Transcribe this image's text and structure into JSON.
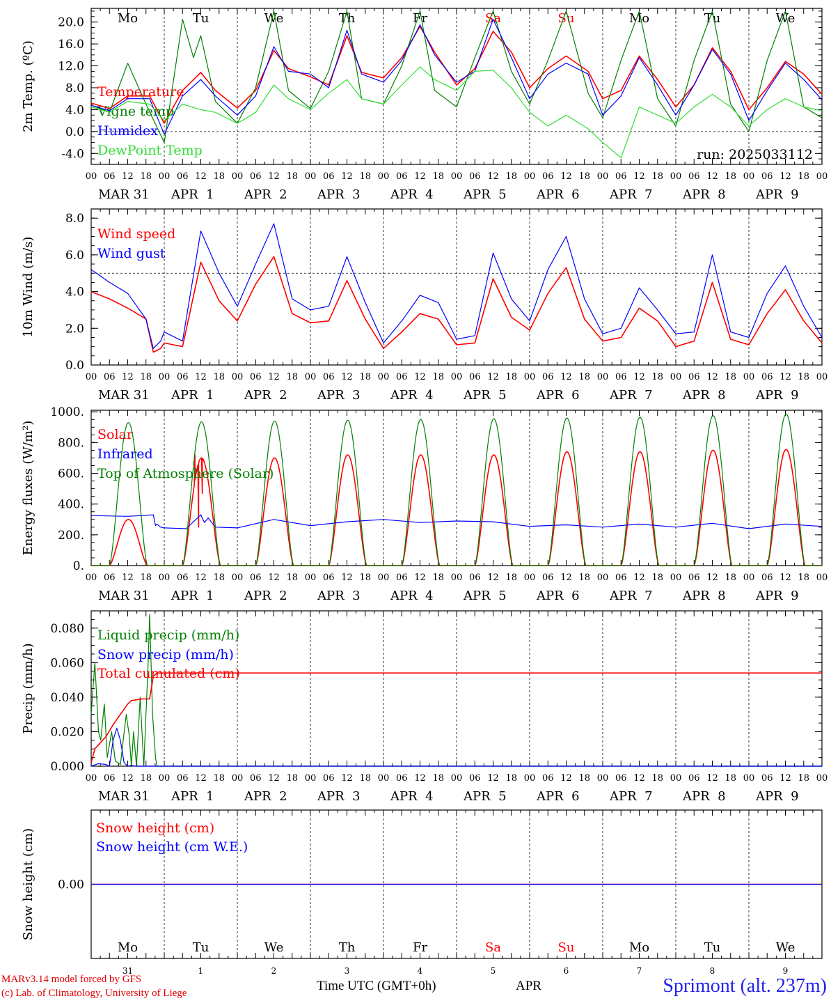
{
  "run_label": "run: 2025033112",
  "day_names": [
    "Mo",
    "Tu",
    "We",
    "Th",
    "Fr",
    "Sa",
    "Su",
    "Mo",
    "Tu",
    "We"
  ],
  "weekend_days": [
    5,
    6
  ],
  "hour_ticks": [
    "00",
    "06",
    "12",
    "18"
  ],
  "date_labels": [
    "MAR 31",
    "APR  1",
    "APR  2",
    "APR  3",
    "APR  4",
    "APR  5",
    "APR  6",
    "APR  7",
    "APR  8",
    "APR  9"
  ],
  "day_numbers": [
    "31",
    "1",
    "2",
    "3",
    "4",
    "5",
    "6",
    "7",
    "8",
    "9"
  ],
  "colors": {
    "red": "#ff0000",
    "blue": "#0000ff",
    "green": "#008000",
    "lime": "#33dd33",
    "grid": "#000000",
    "station": "#2222ee"
  },
  "footer": {
    "credit_line1": "MARv3.14 model forced by GFS",
    "credit_line2": "(c) Lab. of Climatology, University of Liege",
    "x_title": "Time UTC (GMT+0h)",
    "month": "APR",
    "station": "Sprimont (alt. 237m)"
  },
  "chart_data": [
    {
      "type": "line",
      "ylabel": "2m Temp. (ºC)",
      "ylim": [
        -6,
        22.5
      ],
      "yticks": [
        "-4.0",
        "0.0",
        "4.0",
        "8.0",
        "12.0",
        "16.0",
        "20.0"
      ],
      "ytick_values": [
        -4,
        0,
        4,
        8,
        12,
        16,
        20
      ],
      "dashed_reference": 0,
      "x_unit": "days since MAR 31 00 UTC",
      "series": [
        {
          "name": "Temperature",
          "color": "red",
          "x": [
            0,
            0.25,
            0.5,
            0.8,
            1.0,
            1.25,
            1.5,
            1.7,
            2.0,
            2.25,
            2.5,
            2.7,
            3.0,
            3.25,
            3.5,
            3.7,
            4.0,
            4.25,
            4.5,
            4.7,
            5.0,
            5.25,
            5.5,
            5.75,
            6.0,
            6.25,
            6.5,
            6.8,
            7.0,
            7.25,
            7.5,
            7.75,
            8.0,
            8.25,
            8.5,
            8.75,
            9.0,
            9.25,
            9.5,
            9.75,
            10.0
          ],
          "y": [
            5.2,
            4.2,
            6.5,
            6.5,
            1.5,
            7.5,
            10.8,
            7.5,
            4.3,
            7.5,
            14.8,
            11.5,
            10.0,
            8.5,
            17.5,
            10.8,
            9.8,
            13.5,
            19.2,
            14.5,
            8.5,
            11.5,
            18.3,
            14.5,
            8.0,
            11.5,
            13.8,
            11.0,
            6.0,
            7.5,
            13.8,
            9.5,
            4.5,
            8.5,
            15.3,
            11.0,
            4.0,
            8.0,
            12.8,
            10.5,
            6.8
          ]
        },
        {
          "name": "Vigne temp",
          "color": "green",
          "x": [
            0,
            0.25,
            0.5,
            0.75,
            1.0,
            1.25,
            1.4,
            1.5,
            1.7,
            2.0,
            2.25,
            2.5,
            2.7,
            3.0,
            3.25,
            3.5,
            3.7,
            4.0,
            4.25,
            4.5,
            4.7,
            5.0,
            5.25,
            5.5,
            5.75,
            6.0,
            6.25,
            6.5,
            6.8,
            7.0,
            7.25,
            7.5,
            7.75,
            8.0,
            8.25,
            8.5,
            8.75,
            9.0,
            9.25,
            9.5,
            9.75,
            10.0
          ],
          "y": [
            4.8,
            3.5,
            12.5,
            5.0,
            -2.0,
            20.5,
            13.5,
            17.5,
            5.5,
            1.5,
            8.0,
            22.0,
            7.5,
            4.2,
            11.0,
            22.0,
            6.0,
            5.0,
            12.0,
            22.0,
            7.5,
            4.5,
            13.5,
            22.0,
            11.0,
            5.0,
            13.0,
            22.0,
            7.0,
            2.5,
            13.0,
            22.0,
            6.0,
            1.0,
            13.0,
            22.0,
            5.0,
            0.0,
            13.0,
            22.0,
            4.5,
            2.5
          ]
        },
        {
          "name": "Humidex",
          "color": "blue",
          "x": [
            0,
            0.25,
            0.5,
            0.8,
            1.0,
            1.25,
            1.5,
            1.7,
            2.0,
            2.25,
            2.5,
            2.7,
            3.0,
            3.25,
            3.5,
            3.7,
            4.0,
            4.25,
            4.5,
            4.7,
            5.0,
            5.25,
            5.5,
            5.75,
            6.0,
            6.25,
            6.5,
            6.8,
            7.0,
            7.25,
            7.5,
            7.75,
            8.0,
            8.25,
            8.5,
            8.75,
            9.0,
            9.25,
            9.5,
            9.75,
            10.0
          ],
          "y": [
            4.8,
            3.8,
            6.0,
            6.0,
            -0.5,
            6.5,
            9.5,
            6.5,
            3.0,
            6.5,
            15.5,
            11.0,
            10.5,
            8.0,
            18.5,
            10.5,
            9.0,
            13.0,
            19.5,
            14.0,
            9.0,
            11.0,
            20.5,
            13.5,
            6.0,
            10.5,
            12.5,
            10.5,
            3.0,
            6.5,
            13.5,
            8.5,
            3.0,
            8.5,
            15.0,
            10.5,
            2.0,
            7.5,
            12.5,
            9.5,
            5.8
          ]
        },
        {
          "name": "DewPoint Temp",
          "color": "lime",
          "x": [
            0,
            0.25,
            0.5,
            0.8,
            1.0,
            1.25,
            1.5,
            1.7,
            2.0,
            2.25,
            2.5,
            2.7,
            3.0,
            3.25,
            3.5,
            3.7,
            4.0,
            4.25,
            4.5,
            4.7,
            5.0,
            5.25,
            5.5,
            5.75,
            6.0,
            6.25,
            6.5,
            6.8,
            7.0,
            7.25,
            7.5,
            7.75,
            8.0,
            8.25,
            8.5,
            8.75,
            9.0,
            9.25,
            9.5,
            9.75,
            10.0
          ],
          "y": [
            4.5,
            3.5,
            5.5,
            5.0,
            2.0,
            5.0,
            4.0,
            3.5,
            1.5,
            3.5,
            8.5,
            6.0,
            4.0,
            7.0,
            9.5,
            6.0,
            5.0,
            8.5,
            11.8,
            9.5,
            7.5,
            11.0,
            11.2,
            8.0,
            3.5,
            1.0,
            3.0,
            0.5,
            -2.0,
            -4.8,
            4.5,
            3.0,
            1.5,
            4.5,
            6.8,
            4.5,
            1.0,
            4.0,
            6.0,
            4.5,
            3.8
          ]
        }
      ]
    },
    {
      "type": "line",
      "ylabel": "10m Wind (m/s)",
      "ylim": [
        0,
        8.5
      ],
      "yticks": [
        "0.0",
        "2.0",
        "4.0",
        "6.0",
        "8.0"
      ],
      "ytick_values": [
        0,
        2,
        4,
        6,
        8
      ],
      "dashed_reference": 5,
      "x_unit": "days since MAR 31 00 UTC",
      "series": [
        {
          "name": "Wind speed",
          "color": "red",
          "x": [
            0,
            0.25,
            0.5,
            0.75,
            0.85,
            0.95,
            1.0,
            1.25,
            1.5,
            1.75,
            2.0,
            2.25,
            2.5,
            2.75,
            3.0,
            3.25,
            3.5,
            3.75,
            4.0,
            4.25,
            4.5,
            4.75,
            5.0,
            5.25,
            5.5,
            5.75,
            6.0,
            6.25,
            6.5,
            6.75,
            7.0,
            7.25,
            7.5,
            7.75,
            8.0,
            8.25,
            8.5,
            8.75,
            9.0,
            9.25,
            9.5,
            9.75,
            10.0
          ],
          "y": [
            4.0,
            3.6,
            3.1,
            2.5,
            0.7,
            0.9,
            1.2,
            1.0,
            5.6,
            3.5,
            2.4,
            4.4,
            5.9,
            2.8,
            2.3,
            2.4,
            4.6,
            2.5,
            0.9,
            1.8,
            2.8,
            2.5,
            1.1,
            1.2,
            4.7,
            2.6,
            1.9,
            3.9,
            5.3,
            2.5,
            1.3,
            1.5,
            3.1,
            2.4,
            1.0,
            1.3,
            4.5,
            1.4,
            1.1,
            2.8,
            4.1,
            2.4,
            1.2
          ]
        },
        {
          "name": "Wind gust",
          "color": "blue",
          "x": [
            0,
            0.25,
            0.5,
            0.75,
            0.85,
            0.95,
            1.0,
            1.25,
            1.5,
            1.75,
            2.0,
            2.25,
            2.5,
            2.75,
            3.0,
            3.25,
            3.5,
            3.75,
            4.0,
            4.25,
            4.5,
            4.75,
            5.0,
            5.25,
            5.5,
            5.75,
            6.0,
            6.25,
            6.5,
            6.75,
            7.0,
            7.25,
            7.5,
            7.75,
            8.0,
            8.25,
            8.5,
            8.75,
            9.0,
            9.25,
            9.5,
            9.75,
            10.0
          ],
          "y": [
            5.2,
            4.5,
            3.9,
            2.5,
            0.9,
            1.3,
            1.8,
            1.3,
            7.3,
            5.0,
            3.2,
            5.5,
            7.7,
            3.6,
            3.0,
            3.2,
            5.9,
            3.4,
            1.2,
            2.4,
            3.8,
            3.4,
            1.4,
            1.6,
            6.1,
            3.6,
            2.4,
            5.2,
            7.0,
            3.6,
            1.7,
            2.0,
            4.2,
            3.0,
            1.7,
            1.8,
            6.0,
            1.8,
            1.5,
            3.9,
            5.4,
            3.2,
            1.5
          ]
        }
      ]
    },
    {
      "type": "line",
      "ylabel": "Energy fluxes (W/m²)",
      "ylim": [
        0,
        1010
      ],
      "yticks": [
        "0.",
        "200.",
        "400.",
        "600.",
        "800.",
        "1000."
      ],
      "ytick_values": [
        0,
        200,
        400,
        600,
        800,
        1000
      ],
      "x_unit": "days since MAR 31 00 UTC",
      "series": [
        {
          "name": "Solar",
          "color": "red",
          "shape": "diurnal",
          "peaks": [
            300,
            700,
            700,
            720,
            720,
            720,
            740,
            740,
            750,
            755
          ],
          "x": [
            1.42,
            1.47,
            1.52
          ],
          "y": [
            720,
            250,
            470
          ]
        },
        {
          "name": "Infrared",
          "color": "blue",
          "x": [
            0,
            0.5,
            0.85,
            0.88,
            0.9,
            0.95,
            1.0,
            1.3,
            1.5,
            1.55,
            1.6,
            1.7,
            2.0,
            2.5,
            3.0,
            3.5,
            4.0,
            4.5,
            5.0,
            5.5,
            6.0,
            6.5,
            7.0,
            7.5,
            8.0,
            8.5,
            9.0,
            9.5,
            10.0
          ],
          "y": [
            325,
            320,
            330,
            260,
            270,
            250,
            245,
            240,
            330,
            280,
            310,
            250,
            245,
            300,
            260,
            285,
            300,
            280,
            290,
            285,
            255,
            265,
            250,
            270,
            250,
            275,
            240,
            270,
            255
          ]
        },
        {
          "name": "Top of Atmosphere (Solar)",
          "color": "green",
          "shape": "diurnal",
          "peaks": [
            930,
            935,
            940,
            945,
            950,
            955,
            960,
            965,
            975,
            985
          ]
        }
      ]
    },
    {
      "type": "line",
      "ylabel": "Precip (mm/h)",
      "ylim": [
        0,
        0.09
      ],
      "yticks": [
        "0.000",
        "0.020",
        "0.040",
        "0.060",
        "0.080"
      ],
      "ytick_values": [
        0,
        0.02,
        0.04,
        0.06,
        0.08
      ],
      "x_unit": "days since MAR 31 00 UTC",
      "series": [
        {
          "name": "Liquid precip (mm/h)",
          "color": "green",
          "x": [
            0,
            0.05,
            0.1,
            0.13,
            0.18,
            0.22,
            0.28,
            0.33,
            0.4,
            0.48,
            0.52,
            0.55,
            0.58,
            0.62,
            0.67,
            0.72,
            0.78,
            0.8,
            0.84,
            0.88,
            0.9,
            0.95,
            1.0,
            10.0
          ],
          "y": [
            0.03,
            0.06,
            0.02,
            0.015,
            0.036,
            0.005,
            0.02,
            0.003,
            0.001,
            0.03,
            0.018,
            0.0,
            0.02,
            0.0,
            0.04,
            0.0,
            0.06,
            0.088,
            0.03,
            0.005,
            0.0,
            0.0,
            0.0,
            0.0
          ]
        },
        {
          "name": "Snow precip (mm/h)",
          "color": "blue",
          "x": [
            0,
            0.1,
            0.2,
            0.25,
            0.3,
            0.35,
            0.4,
            0.45,
            0.5,
            0.55,
            0.6,
            1.0,
            10.0
          ],
          "y": [
            0,
            0.0015,
            0.001,
            0,
            0.015,
            0.022,
            0.015,
            0.002,
            0.0,
            0.0005,
            0,
            0,
            0
          ]
        },
        {
          "name": "Total cumulated (cm)",
          "color": "red",
          "x": [
            0,
            0.05,
            0.2,
            0.3,
            0.5,
            0.55,
            0.7,
            0.8,
            0.85,
            0.9,
            1.0,
            10.0
          ],
          "y": [
            0.002,
            0.01,
            0.017,
            0.024,
            0.036,
            0.038,
            0.039,
            0.039,
            0.052,
            0.054,
            0.054,
            0.054
          ]
        }
      ]
    },
    {
      "type": "line",
      "ylabel": "Snow height (cm)",
      "ylim": [
        -1,
        1
      ],
      "yticks": [
        "0.00"
      ],
      "ytick_values": [
        0
      ],
      "x_unit": "days since MAR 31 00 UTC",
      "series": [
        {
          "name": "Snow height (cm)",
          "color": "red",
          "x": [
            0,
            10
          ],
          "y": [
            0,
            0
          ]
        },
        {
          "name": "Snow height (cm W.E.)",
          "color": "blue",
          "x": [
            0,
            10
          ],
          "y": [
            0,
            0
          ]
        }
      ]
    }
  ]
}
